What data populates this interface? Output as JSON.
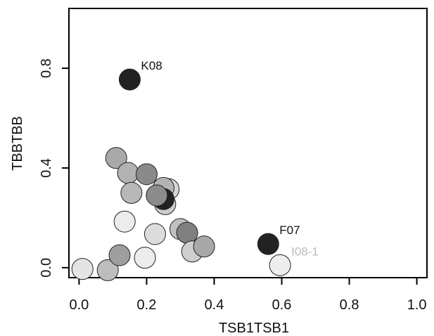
{
  "chart_data": {
    "type": "scatter",
    "xlabel": "TSB1TSB1",
    "ylabel": "TBBTBB",
    "xlim": [
      -0.03,
      1.03
    ],
    "ylim": [
      -0.04,
      1.04
    ],
    "x_ticks": [
      0.0,
      0.2,
      0.4,
      0.6,
      0.8,
      1.0
    ],
    "x_tick_labels": [
      "0.0",
      "0.2",
      "0.4",
      "0.6",
      "0.8",
      "1.0"
    ],
    "y_ticks": [
      0.0,
      0.4,
      0.8
    ],
    "y_tick_labels": [
      "0.0",
      "0.4",
      "0.8"
    ],
    "grid": false,
    "points": [
      {
        "x": 0.01,
        "y": -0.005,
        "color": "#e4e4e4"
      },
      {
        "x": 0.085,
        "y": -0.01,
        "color": "#bdbdbd"
      },
      {
        "x": 0.12,
        "y": 0.05,
        "color": "#9e9e9e"
      },
      {
        "x": 0.135,
        "y": 0.185,
        "color": "#ececec"
      },
      {
        "x": 0.195,
        "y": 0.04,
        "color": "#ececec"
      },
      {
        "x": 0.225,
        "y": 0.135,
        "color": "#dcdcdc"
      },
      {
        "x": 0.11,
        "y": 0.44,
        "color": "#a9a9a9"
      },
      {
        "x": 0.145,
        "y": 0.38,
        "color": "#b2b2b2"
      },
      {
        "x": 0.155,
        "y": 0.3,
        "color": "#b8b8b8"
      },
      {
        "x": 0.2,
        "y": 0.375,
        "color": "#8a8a8a"
      },
      {
        "x": 0.265,
        "y": 0.315,
        "color": "#d6d6d6"
      },
      {
        "x": 0.255,
        "y": 0.255,
        "color": "#cccccc"
      },
      {
        "x": 0.25,
        "y": 0.32,
        "color": "#b4b4b4"
      },
      {
        "x": 0.25,
        "y": 0.275,
        "color": "#222222"
      },
      {
        "x": 0.23,
        "y": 0.29,
        "color": "#8c8c8c"
      },
      {
        "x": 0.3,
        "y": 0.155,
        "color": "#c0c0c0"
      },
      {
        "x": 0.32,
        "y": 0.14,
        "color": "#808080"
      },
      {
        "x": 0.335,
        "y": 0.065,
        "color": "#cfcfcf"
      },
      {
        "x": 0.37,
        "y": 0.085,
        "color": "#a8a8a8"
      },
      {
        "x": 0.15,
        "y": 0.755,
        "color": "#222222",
        "label": "K08",
        "label_color": "#111111"
      },
      {
        "x": 0.56,
        "y": 0.095,
        "color": "#222222",
        "label": "F07",
        "label_color": "#111111"
      },
      {
        "x": 0.595,
        "y": 0.01,
        "color": "#ededed",
        "label": "I08-1",
        "label_color": "#bbbbbb"
      }
    ]
  }
}
